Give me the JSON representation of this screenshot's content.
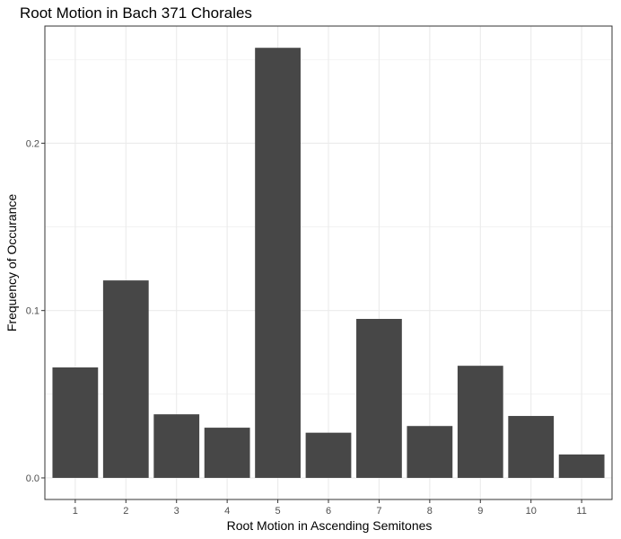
{
  "chart_data": {
    "type": "bar",
    "title": "Root Motion in Bach 371 Chorales",
    "xlabel": "Root Motion in Ascending Semitones",
    "ylabel": "Frequency of Occurance",
    "categories": [
      "1",
      "2",
      "3",
      "4",
      "5",
      "6",
      "7",
      "8",
      "9",
      "10",
      "11"
    ],
    "values": [
      0.066,
      0.118,
      0.038,
      0.03,
      0.257,
      0.027,
      0.095,
      0.031,
      0.067,
      0.037,
      0.014
    ],
    "yticks": [
      0.0,
      0.1,
      0.2
    ],
    "ytick_labels": [
      "0.0",
      "0.1",
      "0.2"
    ],
    "ylim": [
      -0.0129,
      0.27
    ],
    "grid": true,
    "bar_color": "#474747",
    "grid_color": "#ebebeb",
    "panel_border_color": "#333333"
  }
}
